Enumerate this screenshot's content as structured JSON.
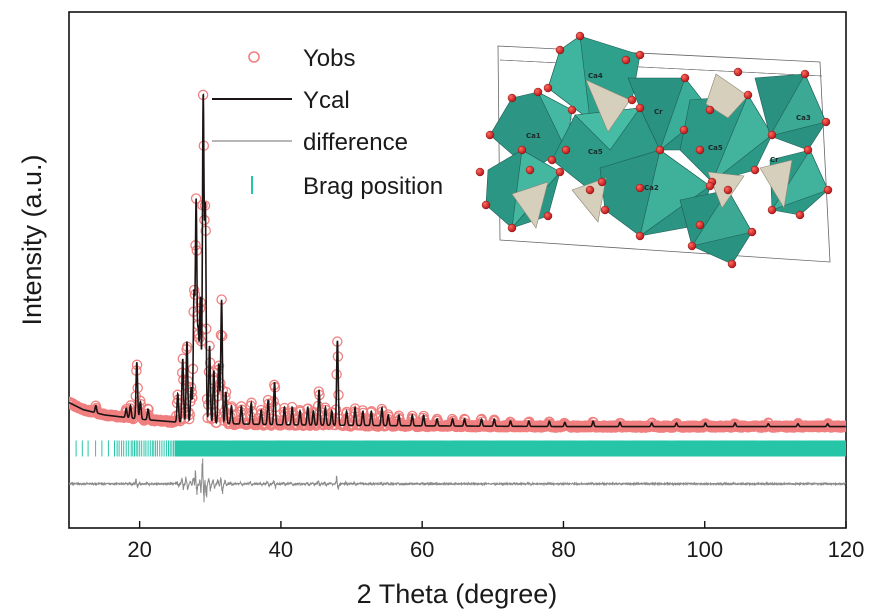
{
  "chart_data": {
    "type": "line",
    "xlabel": "2 Theta (degree)",
    "ylabel": "Intensity (a.u.)",
    "xlim": [
      10,
      120
    ],
    "ylim": [
      -0.28,
      1.18
    ],
    "x_ticks": [
      20,
      40,
      60,
      80,
      100,
      120
    ],
    "x_tick_labels": [
      "20",
      "40",
      "60",
      "80",
      "100",
      "120"
    ],
    "grid": false,
    "legend": {
      "placement": "top-center",
      "entries": [
        "Yobs",
        "Ycal",
        "difference",
        "Brag position"
      ]
    },
    "colors": {
      "yobs": "#f07f7f",
      "ycal": "#1c1414",
      "difference": "#8a8a8a",
      "brag": "#27c5a8"
    },
    "background": {
      "x": [
        10,
        12,
        15,
        20,
        25,
        30,
        40,
        60,
        80,
        100,
        120
      ],
      "y": [
        0.075,
        0.055,
        0.04,
        0.028,
        0.02,
        0.016,
        0.012,
        0.009,
        0.007,
        0.007,
        0.007
      ]
    },
    "peaks": [
      {
        "x": 13.8,
        "y": 0.02
      },
      {
        "x": 18.1,
        "y": 0.025
      },
      {
        "x": 18.7,
        "y": 0.035
      },
      {
        "x": 19.6,
        "y": 0.16
      },
      {
        "x": 20.1,
        "y": 0.05
      },
      {
        "x": 21.2,
        "y": 0.03
      },
      {
        "x": 25.4,
        "y": 0.08
      },
      {
        "x": 26.1,
        "y": 0.18
      },
      {
        "x": 26.7,
        "y": 0.23
      },
      {
        "x": 27.3,
        "y": 0.1
      },
      {
        "x": 27.7,
        "y": 0.36
      },
      {
        "x": 28.0,
        "y": 0.62
      },
      {
        "x": 28.3,
        "y": 0.25
      },
      {
        "x": 28.6,
        "y": 0.35
      },
      {
        "x": 29.0,
        "y": 0.92
      },
      {
        "x": 29.3,
        "y": 0.6
      },
      {
        "x": 29.9,
        "y": 0.22
      },
      {
        "x": 30.5,
        "y": 0.15
      },
      {
        "x": 31.2,
        "y": 0.17
      },
      {
        "x": 31.6,
        "y": 0.35
      },
      {
        "x": 32.2,
        "y": 0.09
      },
      {
        "x": 33.0,
        "y": 0.05
      },
      {
        "x": 34.4,
        "y": 0.05
      },
      {
        "x": 35.8,
        "y": 0.06
      },
      {
        "x": 37.2,
        "y": 0.04
      },
      {
        "x": 38.2,
        "y": 0.07
      },
      {
        "x": 39.1,
        "y": 0.12
      },
      {
        "x": 40.5,
        "y": 0.05
      },
      {
        "x": 41.6,
        "y": 0.05
      },
      {
        "x": 42.7,
        "y": 0.04
      },
      {
        "x": 43.8,
        "y": 0.05
      },
      {
        "x": 44.6,
        "y": 0.04
      },
      {
        "x": 45.4,
        "y": 0.1
      },
      {
        "x": 46.3,
        "y": 0.05
      },
      {
        "x": 47.2,
        "y": 0.04
      },
      {
        "x": 48.0,
        "y": 0.24
      },
      {
        "x": 49.3,
        "y": 0.04
      },
      {
        "x": 50.5,
        "y": 0.05
      },
      {
        "x": 51.6,
        "y": 0.04
      },
      {
        "x": 52.8,
        "y": 0.04
      },
      {
        "x": 54.3,
        "y": 0.05
      },
      {
        "x": 55.2,
        "y": 0.03
      },
      {
        "x": 56.7,
        "y": 0.03
      },
      {
        "x": 58.6,
        "y": 0.03
      },
      {
        "x": 60.2,
        "y": 0.03
      },
      {
        "x": 62.1,
        "y": 0.02
      },
      {
        "x": 64.3,
        "y": 0.02
      },
      {
        "x": 66.0,
        "y": 0.02
      },
      {
        "x": 68.4,
        "y": 0.02
      },
      {
        "x": 70.2,
        "y": 0.02
      },
      {
        "x": 72.5,
        "y": 0.015
      },
      {
        "x": 75.1,
        "y": 0.015
      },
      {
        "x": 78.0,
        "y": 0.015
      },
      {
        "x": 80.2,
        "y": 0.012
      },
      {
        "x": 84.2,
        "y": 0.015
      },
      {
        "x": 88.0,
        "y": 0.012
      },
      {
        "x": 92.5,
        "y": 0.01
      },
      {
        "x": 96.0,
        "y": 0.01
      },
      {
        "x": 100.1,
        "y": 0.01
      },
      {
        "x": 104.3,
        "y": 0.01
      },
      {
        "x": 109.0,
        "y": 0.008
      },
      {
        "x": 113.2,
        "y": 0.008
      },
      {
        "x": 117.4,
        "y": 0.008
      }
    ],
    "difference_offset": -0.155,
    "brag_level": -0.055,
    "brag_range": [
      11,
      120
    ],
    "inset": {
      "type": "crystal-structure-image",
      "atom_labels": [
        "Ca4",
        "Ca1",
        "Ca5",
        "Ca2",
        "Ca3",
        "Ca5",
        "Cr",
        "Cr"
      ],
      "colors": {
        "octahedron": "#2f9e8b",
        "tetrahedron": "#d3ccb8",
        "oxygen": "#c8191c"
      }
    }
  }
}
